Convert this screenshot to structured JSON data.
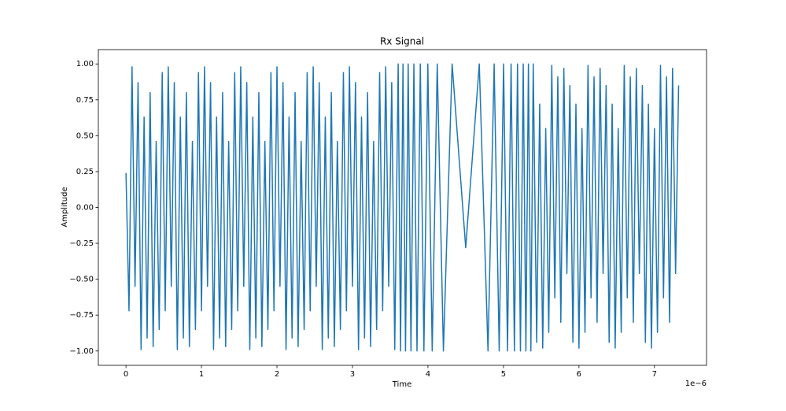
{
  "chart_data": {
    "type": "line",
    "title": "Rx Signal",
    "x_label": "Time",
    "y_label": "Amplitude",
    "x_offset_label": "1e−6",
    "color": "#1f77b4",
    "xlim": [
      -3.66e-07,
      7.69e-06
    ],
    "ylim": [
      -1.1,
      1.1
    ],
    "xticks": [
      0,
      {
        "value": 1e-06,
        "label": "1"
      },
      {
        "value": 2e-06,
        "label": "2"
      },
      {
        "value": 3e-06,
        "label": "3"
      },
      {
        "value": 4e-06,
        "label": "4"
      },
      {
        "value": 5e-06,
        "label": "5"
      },
      {
        "value": 6e-06,
        "label": "6"
      },
      {
        "value": 7e-06,
        "label": "7"
      }
    ],
    "yticks": [
      {
        "value": -1,
        "label": "−1.00"
      },
      {
        "value": -0.75,
        "label": "−0.75"
      },
      {
        "value": -0.5,
        "label": "−0.50"
      },
      {
        "value": -0.25,
        "label": "−0.25"
      },
      {
        "value": 0,
        "label": "0.00"
      },
      {
        "value": 0.25,
        "label": "0.25"
      },
      {
        "value": 0.5,
        "label": "0.50"
      },
      {
        "value": 0.75,
        "label": "0.75"
      },
      {
        "value": 1,
        "label": "1.00"
      }
    ],
    "x": [
      0,
      4e-08,
      8e-08,
      1.2e-07,
      1.6e-07,
      2e-07,
      2.4e-07,
      2.8e-07,
      3.2e-07,
      3.6e-07,
      4e-07,
      4.4e-07,
      4.8e-07,
      5.2e-07,
      5.6e-07,
      6e-07,
      6.4e-07,
      6.8e-07,
      7.2e-07,
      7.6e-07,
      8e-07,
      8.4e-07,
      8.8e-07,
      9.2e-07,
      9.6e-07,
      1e-06,
      1.04e-06,
      1.08e-06,
      1.12e-06,
      1.16e-06,
      1.2e-06,
      1.24e-06,
      1.28e-06,
      1.32e-06,
      1.36e-06,
      1.4e-06,
      1.44e-06,
      1.48e-06,
      1.52e-06,
      1.56e-06,
      1.6e-06,
      1.64e-06,
      1.68e-06,
      1.72e-06,
      1.76e-06,
      1.8e-06,
      1.84e-06,
      1.88e-06,
      1.92e-06,
      1.96e-06,
      2e-06,
      2.04e-06,
      2.08e-06,
      2.12e-06,
      2.16e-06,
      2.2e-06,
      2.24e-06,
      2.28e-06,
      2.32e-06,
      2.36e-06,
      2.4e-06,
      2.44e-06,
      2.48e-06,
      2.52e-06,
      2.56e-06,
      2.6e-06,
      2.64e-06,
      2.68e-06,
      2.72e-06,
      2.76e-06,
      2.8e-06,
      2.84e-06,
      2.88e-06,
      2.92e-06,
      2.96e-06,
      3e-06,
      3.04e-06,
      3.08e-06,
      3.12e-06,
      3.16e-06,
      3.2e-06,
      3.24e-06,
      3.28e-06,
      3.32e-06,
      3.36e-06,
      3.4e-06,
      3.44e-06,
      3.48e-06,
      3.52e-06,
      3.56e-06,
      3.6056e-06,
      3.6368e-06,
      3.6692e-06,
      3.7029e-06,
      3.738e-06,
      3.7749e-06,
      3.8137e-06,
      3.8549e-06,
      3.8989e-06,
      3.9464e-06,
      3.9983e-06,
      4.0563e-06,
      4.1231e-06,
      4.2047e-06,
      4.3201e-06,
      4.5e-06,
      4.6799e-06,
      4.7953e-06,
      4.8769e-06,
      4.9437e-06,
      5.0017e-06,
      5.0536e-06,
      5.1011e-06,
      5.1451e-06,
      5.1863e-06,
      5.2251e-06,
      5.262e-06,
      5.2971e-06,
      5.3308e-06,
      5.3632e-06,
      5.3944e-06,
      5.44e-06,
      5.48e-06,
      5.52e-06,
      5.56e-06,
      5.6e-06,
      5.64e-06,
      5.68e-06,
      5.72e-06,
      5.76e-06,
      5.8e-06,
      5.84e-06,
      5.88e-06,
      5.92e-06,
      5.96e-06,
      6e-06,
      6.04e-06,
      6.08e-06,
      6.12e-06,
      6.16e-06,
      6.2e-06,
      6.24e-06,
      6.28e-06,
      6.32e-06,
      6.36e-06,
      6.4e-06,
      6.44e-06,
      6.48e-06,
      6.52e-06,
      6.56e-06,
      6.6e-06,
      6.64e-06,
      6.68e-06,
      6.72e-06,
      6.76e-06,
      6.8e-06,
      6.84e-06,
      6.88e-06,
      6.92e-06,
      6.96e-06,
      7e-06,
      7.04e-06,
      7.08e-06,
      7.12e-06,
      7.16e-06,
      7.2e-06,
      7.24e-06,
      7.28e-06,
      7.32e-06
    ],
    "values": [
      0.24,
      -0.72,
      0.98,
      -0.55,
      0.87,
      -0.99,
      0.63,
      -0.91,
      0.8,
      -0.97,
      0.46,
      -0.85,
      0.94,
      -0.72,
      0.98,
      -0.55,
      0.87,
      -0.99,
      0.63,
      -0.91,
      0.8,
      -0.97,
      0.46,
      -0.85,
      0.94,
      -0.72,
      0.98,
      -0.55,
      0.87,
      -0.99,
      0.63,
      -0.91,
      0.8,
      -0.97,
      0.46,
      -0.85,
      0.94,
      -0.72,
      0.98,
      -0.55,
      0.87,
      -0.99,
      0.63,
      -0.91,
      0.8,
      -0.97,
      0.46,
      -0.85,
      0.94,
      -0.72,
      0.98,
      -0.55,
      0.87,
      -0.99,
      0.63,
      -0.91,
      0.8,
      -0.97,
      0.46,
      -0.85,
      0.94,
      -0.72,
      0.98,
      -0.55,
      0.87,
      -0.99,
      0.63,
      -0.91,
      0.8,
      -0.97,
      0.46,
      -0.85,
      0.94,
      -0.72,
      0.98,
      -0.55,
      0.87,
      -0.99,
      0.63,
      -0.91,
      0.8,
      -0.97,
      0.46,
      -0.85,
      0.94,
      -0.72,
      0.98,
      -0.55,
      0.87,
      -0.99,
      1,
      -1,
      1,
      -1,
      1,
      -1,
      1,
      -1,
      1,
      -1,
      1,
      -1,
      1,
      -1,
      1,
      -0.28,
      1,
      -1,
      1,
      -1,
      1,
      -1,
      1,
      -1,
      1,
      -1,
      1,
      -1,
      1,
      -1,
      1,
      -0.94,
      0.72,
      -0.98,
      0.55,
      -0.87,
      0.99,
      -0.63,
      0.91,
      -0.8,
      0.97,
      -0.46,
      0.85,
      -0.94,
      0.72,
      -0.98,
      0.55,
      -0.87,
      0.99,
      -0.63,
      0.91,
      -0.8,
      0.97,
      -0.46,
      0.85,
      -0.94,
      0.72,
      -0.98,
      0.55,
      -0.87,
      0.99,
      -0.63,
      0.91,
      -0.8,
      0.97,
      -0.46,
      0.85,
      -0.94,
      0.72,
      -0.98,
      0.55,
      -0.87,
      0.99,
      -0.63,
      0.91,
      -0.8,
      0.97,
      -0.46,
      0.85
    ]
  }
}
